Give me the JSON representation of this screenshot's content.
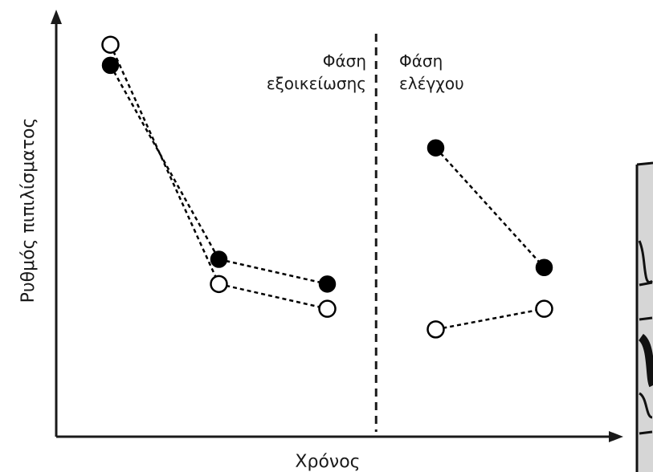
{
  "chart_data": {
    "type": "scatter",
    "xlabel": "Χρόνος",
    "ylabel": "Ρυθμός πιπιλίσματος",
    "grid": false,
    "divider_at": 5.9,
    "xlim": [
      0,
      10
    ],
    "ylim": [
      0,
      10
    ],
    "phases": [
      {
        "label_lines": [
          "Φάση",
          "εξοικείωσης"
        ]
      },
      {
        "label_lines": [
          "Φάση",
          "ελέγχου"
        ]
      }
    ],
    "series": [
      {
        "marker": "filled",
        "color": "#000000",
        "segments": [
          [
            {
              "x": 1.0,
              "y": 9.0
            },
            {
              "x": 3.0,
              "y": 4.3
            },
            {
              "x": 5.0,
              "y": 3.7
            }
          ],
          [
            {
              "x": 7.0,
              "y": 7.0
            },
            {
              "x": 9.0,
              "y": 4.1
            }
          ]
        ]
      },
      {
        "marker": "open",
        "color": "#000000",
        "segments": [
          [
            {
              "x": 1.0,
              "y": 9.5
            },
            {
              "x": 3.0,
              "y": 3.7
            },
            {
              "x": 5.0,
              "y": 3.1
            }
          ],
          [
            {
              "x": 7.0,
              "y": 2.6
            },
            {
              "x": 9.0,
              "y": 3.1
            }
          ]
        ]
      }
    ]
  }
}
